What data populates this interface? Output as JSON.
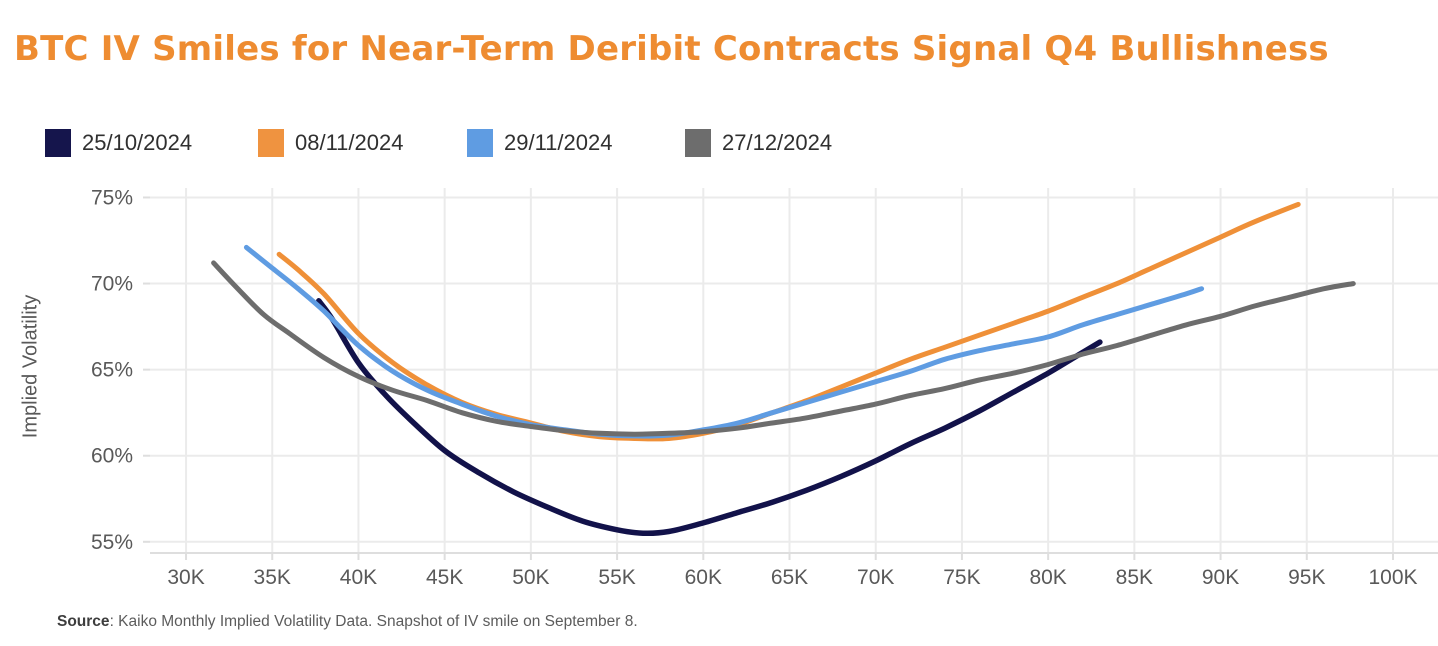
{
  "page": {
    "title": "BTC IV Smiles for Near-Term Deribit Contracts Signal Q4 Bullishness",
    "title_color": "#ee8c31"
  },
  "legend": {
    "items": [
      {
        "label": "25/10/2024",
        "color": "#15154c"
      },
      {
        "label": "08/11/2024",
        "color": "#ef9340"
      },
      {
        "label": "29/11/2024",
        "color": "#5f9ce2"
      },
      {
        "label": "27/12/2024",
        "color": "#6d6d6d"
      }
    ]
  },
  "chart_data": {
    "type": "line",
    "title": "BTC IV Smiles for Near-Term Deribit Contracts Signal Q4 Bullishness",
    "xlabel": "",
    "ylabel": "Implied Volatility",
    "grid": true,
    "legend_position": "top-left",
    "x_axis": {
      "unit": "K (BTC strike, USD thousands)",
      "min": 27.91,
      "max": 102.61,
      "tick_values": [
        30,
        35,
        40,
        45,
        50,
        55,
        60,
        65,
        70,
        75,
        80,
        85,
        90,
        95,
        100
      ],
      "tick_labels": [
        "30K",
        "35K",
        "40K",
        "45K",
        "50K",
        "55K",
        "60K",
        "65K",
        "70K",
        "75K",
        "80K",
        "85K",
        "90K",
        "95K",
        "100K"
      ]
    },
    "y_axis": {
      "unit": "%",
      "min": 54.35,
      "max": 75.55,
      "tick_values": [
        55,
        60,
        65,
        70,
        75
      ],
      "tick_labels": [
        "55%",
        "60%",
        "65%",
        "70%",
        "75%"
      ]
    },
    "series": [
      {
        "name": "25/10/2024",
        "color": "#12124a",
        "stroke_width": 5.5,
        "points": [
          [
            37.7,
            69.0
          ],
          [
            38.5,
            67.9
          ],
          [
            40,
            65.4
          ],
          [
            41.5,
            63.6
          ],
          [
            43,
            62.1
          ],
          [
            45,
            60.3
          ],
          [
            47,
            59.0
          ],
          [
            49,
            57.9
          ],
          [
            51,
            57.0
          ],
          [
            53,
            56.2
          ],
          [
            55,
            55.7
          ],
          [
            56.5,
            55.5
          ],
          [
            58,
            55.6
          ],
          [
            60,
            56.1
          ],
          [
            62,
            56.7
          ],
          [
            64,
            57.3
          ],
          [
            66,
            58.0
          ],
          [
            68,
            58.8
          ],
          [
            70,
            59.7
          ],
          [
            72,
            60.7
          ],
          [
            74,
            61.6
          ],
          [
            76,
            62.6
          ],
          [
            78,
            63.7
          ],
          [
            80,
            64.8
          ],
          [
            81.5,
            65.7
          ],
          [
            83,
            66.6
          ]
        ]
      },
      {
        "name": "08/11/2024",
        "color": "#ef9038",
        "stroke_width": 5,
        "points": [
          [
            35.4,
            71.7
          ],
          [
            36.5,
            70.8
          ],
          [
            38,
            69.4
          ],
          [
            40,
            67.1
          ],
          [
            42,
            65.4
          ],
          [
            44,
            64.1
          ],
          [
            46,
            63.1
          ],
          [
            48,
            62.4
          ],
          [
            50,
            61.9
          ],
          [
            52,
            61.4
          ],
          [
            54,
            61.1
          ],
          [
            56,
            61.0
          ],
          [
            58,
            61.0
          ],
          [
            60,
            61.3
          ],
          [
            62,
            61.8
          ],
          [
            64,
            62.5
          ],
          [
            66,
            63.2
          ],
          [
            68,
            64.0
          ],
          [
            70,
            64.8
          ],
          [
            72,
            65.6
          ],
          [
            74,
            66.3
          ],
          [
            76,
            67.0
          ],
          [
            78,
            67.7
          ],
          [
            80,
            68.4
          ],
          [
            82,
            69.2
          ],
          [
            84,
            70.0
          ],
          [
            86,
            70.9
          ],
          [
            88,
            71.8
          ],
          [
            90,
            72.7
          ],
          [
            92,
            73.6
          ],
          [
            94.5,
            74.6
          ]
        ]
      },
      {
        "name": "29/11/2024",
        "color": "#5f9ce2",
        "stroke_width": 5,
        "points": [
          [
            33.5,
            72.1
          ],
          [
            35,
            70.9
          ],
          [
            36.5,
            69.7
          ],
          [
            38,
            68.4
          ],
          [
            40,
            66.4
          ],
          [
            42,
            64.9
          ],
          [
            44,
            63.8
          ],
          [
            46,
            63.0
          ],
          [
            48,
            62.3
          ],
          [
            50,
            61.8
          ],
          [
            52,
            61.5
          ],
          [
            54,
            61.25
          ],
          [
            56,
            61.15
          ],
          [
            58,
            61.2
          ],
          [
            60,
            61.5
          ],
          [
            62,
            61.9
          ],
          [
            64,
            62.5
          ],
          [
            66,
            63.1
          ],
          [
            68,
            63.7
          ],
          [
            70,
            64.3
          ],
          [
            72,
            64.9
          ],
          [
            74,
            65.6
          ],
          [
            76,
            66.1
          ],
          [
            78,
            66.5
          ],
          [
            80,
            66.9
          ],
          [
            82,
            67.6
          ],
          [
            84,
            68.2
          ],
          [
            86,
            68.8
          ],
          [
            88,
            69.4
          ],
          [
            88.9,
            69.7
          ]
        ]
      },
      {
        "name": "27/12/2024",
        "color": "#6d6d6d",
        "stroke_width": 5,
        "points": [
          [
            31.6,
            71.2
          ],
          [
            33,
            69.7
          ],
          [
            34.5,
            68.2
          ],
          [
            36,
            67.1
          ],
          [
            38,
            65.7
          ],
          [
            40,
            64.6
          ],
          [
            42,
            63.8
          ],
          [
            44,
            63.2
          ],
          [
            46,
            62.5
          ],
          [
            48,
            62.0
          ],
          [
            50,
            61.7
          ],
          [
            52,
            61.45
          ],
          [
            54,
            61.3
          ],
          [
            56,
            61.25
          ],
          [
            58,
            61.3
          ],
          [
            60,
            61.4
          ],
          [
            62,
            61.6
          ],
          [
            64,
            61.9
          ],
          [
            66,
            62.2
          ],
          [
            68,
            62.6
          ],
          [
            70,
            63.0
          ],
          [
            72,
            63.5
          ],
          [
            74,
            63.9
          ],
          [
            76,
            64.4
          ],
          [
            78,
            64.8
          ],
          [
            80,
            65.3
          ],
          [
            82,
            65.9
          ],
          [
            84,
            66.4
          ],
          [
            86,
            67.0
          ],
          [
            88,
            67.6
          ],
          [
            90,
            68.1
          ],
          [
            92,
            68.7
          ],
          [
            94,
            69.2
          ],
          [
            96,
            69.7
          ],
          [
            97.7,
            70.0
          ]
        ]
      }
    ],
    "style": {
      "grid_color": "#ebebeb",
      "axis_line_color": "#dedede",
      "tick_text_color": "#595959",
      "tick_font_size": 21
    }
  },
  "source": {
    "prefix": "Source",
    "text": ": Kaiko Monthly Implied Volatility Data. Snapshot of IV smile on September 8."
  }
}
